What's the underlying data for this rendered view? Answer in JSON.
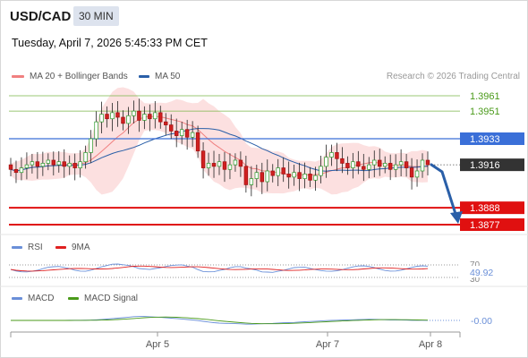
{
  "header": {
    "symbol": "USD/CAD",
    "timeframe": "30 MIN",
    "datetime": "Tuesday, April 7, 2026 5:45:33 PM CET"
  },
  "legend": {
    "ma20": "MA 20 + Bollinger Bands",
    "ma50": "MA 50",
    "rsi": "RSI",
    "rsi_ma": "9MA",
    "macd": "MACD",
    "macd_signal": "MACD Signal"
  },
  "credit": "Research © 2026 Trading Central",
  "colors": {
    "ma20": "#f08080",
    "ma50": "#2a5fa8",
    "bands": "#fbd5d5",
    "resistance_green": "#7ab648",
    "support_red": "#e01010",
    "pivot_blue": "#3a6fd8",
    "rsi_line": "#6a8fd8",
    "rsi_ma_line": "#e02020",
    "macd_line": "#6a8fd8",
    "macd_signal_line": "#4a9a1a",
    "last_price_tag": "#333333",
    "arrow": "#2a5fa8"
  },
  "chart_data": [
    {
      "type": "candlestick",
      "x_ticks": [
        "Apr 5",
        "Apr 7",
        "Apr 8"
      ],
      "levels": [
        {
          "value": 1.3961,
          "label": "1.3961",
          "style": "resistance"
        },
        {
          "value": 1.3951,
          "label": "1.3951",
          "style": "resistance"
        },
        {
          "value": 1.3933,
          "label": "1.3933",
          "style": "pivot"
        },
        {
          "value": 1.3916,
          "label": "1.3916",
          "style": "last_price"
        },
        {
          "value": 1.3888,
          "label": "1.3888",
          "style": "support"
        },
        {
          "value": 1.3877,
          "label": "1.3877",
          "style": "support"
        }
      ],
      "close_path": [
        1.3913,
        1.3911,
        1.3914,
        1.3916,
        1.3918,
        1.3915,
        1.3917,
        1.3919,
        1.3916,
        1.3918,
        1.3915,
        1.3917,
        1.3914,
        1.3918,
        1.3924,
        1.3933,
        1.3944,
        1.3949,
        1.3946,
        1.395,
        1.3947,
        1.3943,
        1.3948,
        1.3951,
        1.3945,
        1.3949,
        1.3946,
        1.395,
        1.3944,
        1.3942,
        1.3938,
        1.3935,
        1.3939,
        1.3934,
        1.3937,
        1.3925,
        1.3914,
        1.3917,
        1.3915,
        1.3918,
        1.3913,
        1.3916,
        1.3919,
        1.3915,
        1.3903,
        1.3907,
        1.3911,
        1.3905,
        1.3912,
        1.3909,
        1.3914,
        1.391,
        1.3908,
        1.3911,
        1.3907,
        1.391,
        1.3906,
        1.3909,
        1.3915,
        1.3921,
        1.3924,
        1.392,
        1.3917,
        1.3914,
        1.3918,
        1.3915,
        1.3913,
        1.3916,
        1.3919,
        1.3915,
        1.3917,
        1.3913,
        1.3916,
        1.3918,
        1.3914,
        1.3908,
        1.3912,
        1.3919,
        1.3916
      ],
      "rsi": {
        "value_label": "49.92",
        "ticks": [
          "70",
          "30"
        ]
      },
      "macd": {
        "value_label": "-0.00"
      }
    }
  ]
}
